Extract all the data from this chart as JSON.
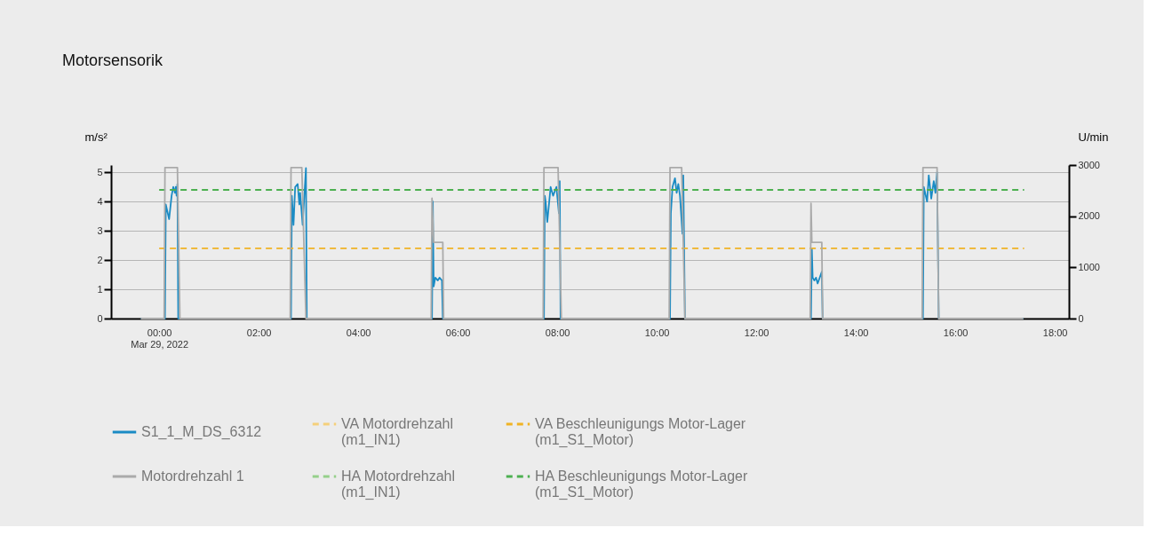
{
  "chart_data": {
    "type": "line",
    "title": "Motorsensorik",
    "ylabel": "m/s²",
    "y2label": "U/min",
    "xlim": [
      "2022-03-28T23:02",
      "2022-03-29T18:17"
    ],
    "xticks": [
      {
        "value": "2022-03-29T00:00",
        "label": "00:00\nMar 29, 2022"
      },
      {
        "value": "2022-03-29T02:00",
        "label": "02:00"
      },
      {
        "value": "2022-03-29T04:00",
        "label": "04:00"
      },
      {
        "value": "2022-03-29T06:00",
        "label": "06:00"
      },
      {
        "value": "2022-03-29T08:00",
        "label": "08:00"
      },
      {
        "value": "2022-03-29T10:00",
        "label": "10:00"
      },
      {
        "value": "2022-03-29T12:00",
        "label": "12:00"
      },
      {
        "value": "2022-03-29T14:00",
        "label": "14:00"
      },
      {
        "value": "2022-03-29T16:00",
        "label": "16:00"
      },
      {
        "value": "2022-03-29T18:00",
        "label": "18:00"
      }
    ],
    "ylim": [
      0,
      5.25
    ],
    "yticks": [
      0,
      1,
      2,
      3,
      4,
      5
    ],
    "y2lim": [
      0,
      3000
    ],
    "y2ticks": [
      0,
      1000,
      2000,
      3000
    ],
    "grid": "y",
    "legend": "bottom",
    "line_style": "solid",
    "series": [
      {
        "name": "S1_1_M_DS_6312",
        "color": "#1a8bc4",
        "x": [
          "2022-03-28T23:38",
          "2022-03-29T00:07",
          "2022-03-29T00:08",
          "2022-03-29T00:12",
          "2022-03-29T00:15",
          "2022-03-29T00:17",
          "2022-03-29T00:19",
          "2022-03-29T00:20",
          "2022-03-29T00:21",
          "2022-03-29T00:22",
          "2022-03-29T00:23",
          "2022-03-29T02:39",
          "2022-03-29T02:40",
          "2022-03-29T02:42",
          "2022-03-29T02:44",
          "2022-03-29T02:47",
          "2022-03-29T02:49",
          "2022-03-29T02:50",
          "2022-03-29T02:53",
          "2022-03-29T02:57",
          "2022-03-29T02:58",
          "2022-03-29T05:29",
          "2022-03-29T05:30",
          "2022-03-29T05:31",
          "2022-03-29T05:33",
          "2022-03-29T05:36",
          "2022-03-29T05:38",
          "2022-03-29T05:41",
          "2022-03-29T05:42",
          "2022-03-29T07:44",
          "2022-03-29T07:45",
          "2022-03-29T07:46",
          "2022-03-29T07:48",
          "2022-03-29T07:52",
          "2022-03-29T07:55",
          "2022-03-29T07:59",
          "2022-03-29T08:02",
          "2022-03-29T08:03",
          "2022-03-29T08:04",
          "2022-03-29T10:16",
          "2022-03-29T10:17",
          "2022-03-29T10:19",
          "2022-03-29T10:22",
          "2022-03-29T10:24",
          "2022-03-29T10:26",
          "2022-03-29T10:28",
          "2022-03-29T10:31",
          "2022-03-29T10:32",
          "2022-03-29T10:34",
          "2022-03-29T13:06",
          "2022-03-29T13:07",
          "2022-03-29T13:08",
          "2022-03-29T13:10",
          "2022-03-29T13:12",
          "2022-03-29T13:14",
          "2022-03-29T13:19",
          "2022-03-29T13:20",
          "2022-03-29T15:21",
          "2022-03-29T15:22",
          "2022-03-29T15:26",
          "2022-03-29T15:28",
          "2022-03-29T15:31",
          "2022-03-29T15:34",
          "2022-03-29T15:36",
          "2022-03-29T15:38",
          "2022-03-29T15:40",
          "2022-03-29T17:22"
        ],
        "values": [
          0,
          0,
          3.9,
          3.4,
          4.2,
          4.5,
          4.3,
          4.5,
          4.2,
          4.6,
          0,
          0,
          4.2,
          3.2,
          4.5,
          4.6,
          3.9,
          4.3,
          3.2,
          5.15,
          0,
          0,
          4.0,
          1.1,
          1.4,
          1.3,
          1.4,
          1.3,
          0,
          0,
          4.2,
          4.0,
          3.3,
          4.5,
          4.2,
          4.5,
          3.6,
          4.7,
          0,
          0,
          3.6,
          4.5,
          4.8,
          4.3,
          4.6,
          4.2,
          2.9,
          4.9,
          0,
          0,
          2.4,
          1.4,
          1.3,
          1.4,
          1.2,
          1.6,
          0,
          0,
          4.5,
          4.0,
          4.9,
          4.1,
          4.7,
          4.3,
          5.0,
          0,
          0
        ]
      },
      {
        "name": "Motordrehzahl 1",
        "color": "#aaaaaa",
        "axis": "y2",
        "x": [
          "2022-03-28T23:38",
          "2022-03-29T00:06",
          "2022-03-29T00:07",
          "2022-03-29T00:22",
          "2022-03-29T00:25",
          "2022-03-29T02:38",
          "2022-03-29T02:39",
          "2022-03-29T02:52",
          "2022-03-29T02:57",
          "2022-03-29T05:28",
          "2022-03-29T05:29",
          "2022-03-29T05:31",
          "2022-03-29T05:42",
          "2022-03-29T05:43",
          "2022-03-29T07:43",
          "2022-03-29T07:44",
          "2022-03-29T08:01",
          "2022-03-29T08:05",
          "2022-03-29T10:15",
          "2022-03-29T10:16",
          "2022-03-29T10:30",
          "2022-03-29T10:34",
          "2022-03-29T13:05",
          "2022-03-29T13:06",
          "2022-03-29T13:07",
          "2022-03-29T13:19",
          "2022-03-29T13:20",
          "2022-03-29T15:20",
          "2022-03-29T15:21",
          "2022-03-29T15:38",
          "2022-03-29T15:40",
          "2022-03-29T17:22"
        ],
        "values": [
          0,
          0,
          2950,
          2950,
          0,
          0,
          2950,
          2950,
          0,
          0,
          2350,
          1490,
          1490,
          0,
          0,
          2950,
          2950,
          0,
          0,
          2950,
          2950,
          0,
          0,
          2250,
          1490,
          1490,
          0,
          0,
          2950,
          2950,
          0,
          0
        ]
      },
      {
        "name": "VA Motordrehzahl (m1_IN1)",
        "color": "#f5cf7a",
        "axis": "y2",
        "line_style": "dashed"
      },
      {
        "name": "HA Motordrehzahl (m1_IN1)",
        "color": "#95d08a",
        "axis": "y2",
        "line_style": "dashed"
      },
      {
        "name": "VA Beschleunigungs Motor-Lager (m1_S1_Motor)",
        "color": "#f0b323",
        "line_style": "dashed",
        "x": [
          "2022-03-29T00:00",
          "2022-03-29T17:23"
        ],
        "values": [
          2.4,
          2.4
        ]
      },
      {
        "name": "HA Beschleunigungs Motor-Lager (m1_S1_Motor)",
        "color": "#4cb050",
        "line_style": "dashed",
        "x": [
          "2022-03-29T00:00",
          "2022-03-29T17:23"
        ],
        "values": [
          4.4,
          4.4
        ]
      }
    ]
  }
}
